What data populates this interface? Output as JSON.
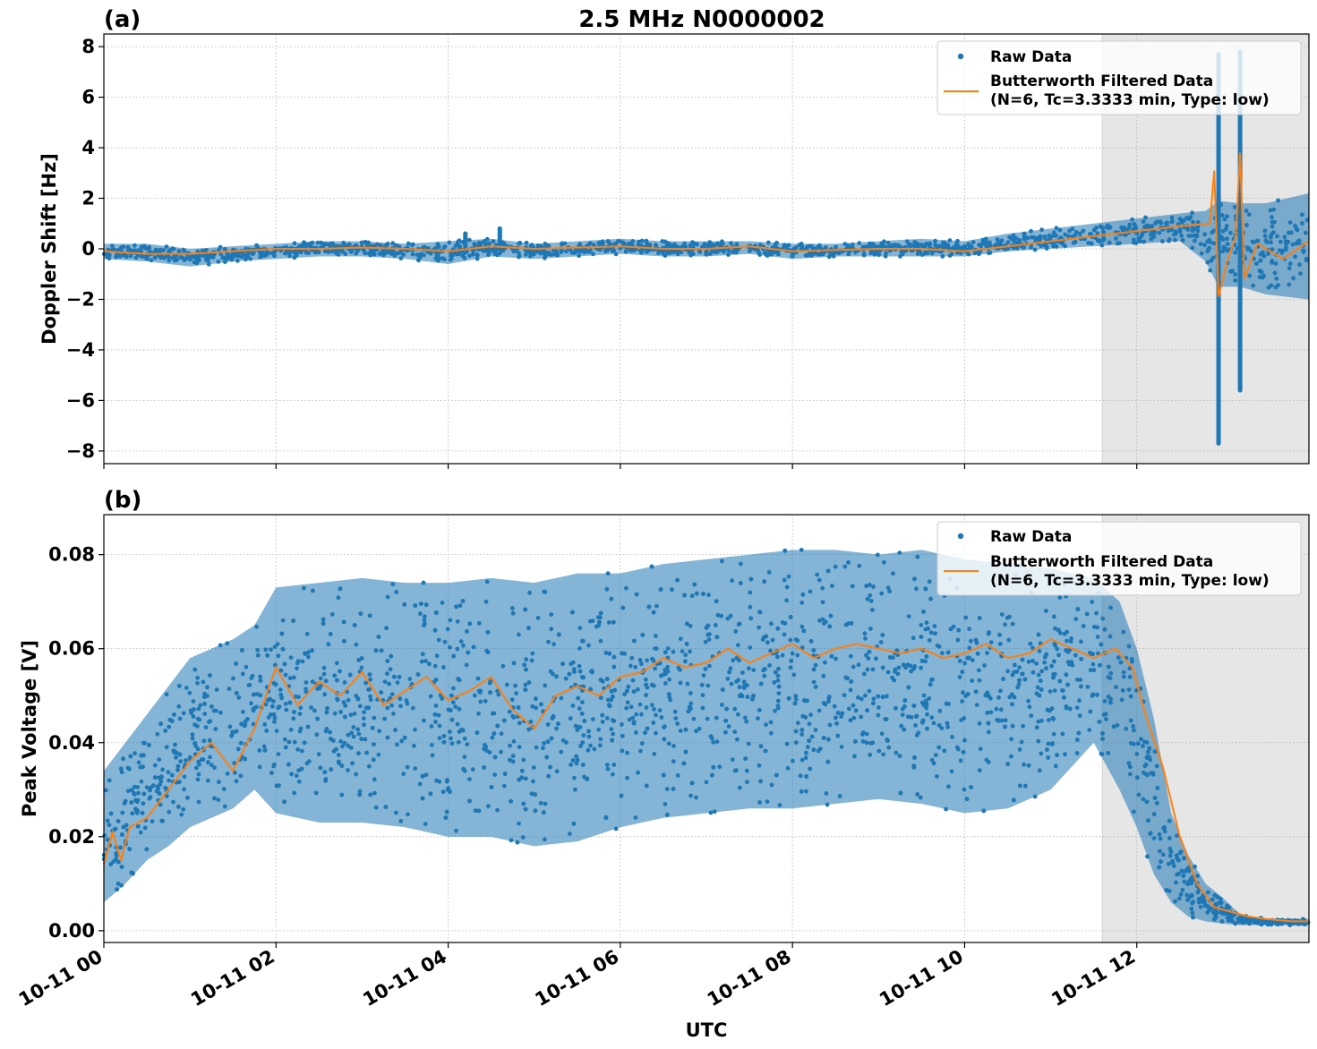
{
  "figure": {
    "title": "2.5 MHz N0000002",
    "xlabel": "UTC",
    "x_range_hours": [
      0,
      14
    ],
    "x_ticks": [
      {
        "hour": 0,
        "label": "10-11 00"
      },
      {
        "hour": 2,
        "label": "10-11 02"
      },
      {
        "hour": 4,
        "label": "10-11 04"
      },
      {
        "hour": 6,
        "label": "10-11 06"
      },
      {
        "hour": 8,
        "label": "10-11 08"
      },
      {
        "hour": 10,
        "label": "10-11 10"
      },
      {
        "hour": 12,
        "label": "10-11 12"
      }
    ],
    "shaded_region_hours": [
      11.6,
      14
    ],
    "colors": {
      "raw": "#1f77b4",
      "filtered": "#ff7f0e",
      "shade": "#e6e6e6",
      "grid": "#b0b0b0"
    },
    "legend": {
      "placement": "upper-right",
      "raw_label": "Raw Data",
      "filtered_label_line1": "Butterworth Filtered Data",
      "filtered_label_line2": "(N=6, Tc=3.3333 min, Type: low)"
    }
  },
  "chart_data": [
    {
      "type": "scatter",
      "panel_label": "(a)",
      "ylabel": "Doppler Shift [Hz]",
      "ylim": [
        -8.5,
        8.5
      ],
      "y_ticks": [
        {
          "value": 8,
          "label": "8"
        },
        {
          "value": 6,
          "label": "6"
        },
        {
          "value": 4,
          "label": "4"
        },
        {
          "value": 2,
          "label": "2"
        },
        {
          "value": 0,
          "label": "0"
        },
        {
          "value": -2,
          "label": "−2"
        },
        {
          "value": -4,
          "label": "−4"
        },
        {
          "value": -6,
          "label": "−6"
        },
        {
          "value": -8,
          "label": "−8"
        }
      ],
      "grid": true,
      "series": [
        {
          "name": "Raw Data",
          "kind": "band",
          "x": [
            0,
            0.5,
            1,
            1.5,
            2,
            2.5,
            3,
            3.5,
            4,
            4.5,
            5,
            5.5,
            6,
            6.5,
            7,
            7.5,
            8,
            8.5,
            9,
            9.5,
            10,
            10.5,
            11,
            11.5,
            12,
            12.5,
            12.8,
            12.95,
            13.2,
            13.5,
            14
          ],
          "low": [
            -0.4,
            -0.5,
            -0.7,
            -0.5,
            -0.4,
            -0.3,
            -0.3,
            -0.4,
            -0.6,
            -0.3,
            -0.4,
            -0.3,
            -0.2,
            -0.3,
            -0.3,
            -0.2,
            -0.4,
            -0.3,
            -0.3,
            -0.3,
            -0.3,
            -0.1,
            0.0,
            0.1,
            0.2,
            0.3,
            -0.5,
            -1.5,
            -1.5,
            -1.8,
            -2.0
          ],
          "high": [
            0.2,
            0.2,
            0.0,
            0.1,
            0.2,
            0.3,
            0.3,
            0.2,
            0.3,
            0.4,
            0.2,
            0.3,
            0.4,
            0.3,
            0.3,
            0.3,
            0.2,
            0.2,
            0.3,
            0.4,
            0.3,
            0.6,
            0.8,
            1.0,
            1.2,
            1.4,
            1.5,
            1.9,
            1.8,
            1.8,
            2.2
          ],
          "spikes": [
            {
              "x": 4.2,
              "y": 0.6
            },
            {
              "x": 4.6,
              "y": 0.8
            },
            {
              "x": 12.95,
              "y": 7.7
            },
            {
              "x": 12.95,
              "y": -7.7
            },
            {
              "x": 13.2,
              "y": 7.8
            },
            {
              "x": 13.2,
              "y": -5.6
            }
          ]
        },
        {
          "name": "Butterworth Filtered Data",
          "kind": "line",
          "x": [
            0,
            0.5,
            1,
            1.5,
            2,
            2.5,
            3,
            3.5,
            4,
            4.5,
            5,
            5.5,
            6,
            6.5,
            7,
            7.5,
            8,
            8.5,
            9,
            9.5,
            10,
            10.5,
            11,
            11.5,
            12,
            12.5,
            12.85,
            12.9,
            12.95,
            13.05,
            13.15,
            13.2,
            13.25,
            13.4,
            13.7,
            14
          ],
          "y": [
            -0.1,
            -0.2,
            -0.2,
            -0.1,
            0.0,
            0.0,
            0.05,
            0.0,
            -0.1,
            0.1,
            0.0,
            0.05,
            0.1,
            0.0,
            0.0,
            0.1,
            -0.1,
            -0.05,
            0.0,
            0.0,
            -0.1,
            0.1,
            0.3,
            0.5,
            0.7,
            0.9,
            1.0,
            3.1,
            -1.9,
            -0.5,
            0.5,
            3.8,
            -1.2,
            0.2,
            -0.4,
            0.3
          ]
        }
      ]
    },
    {
      "type": "scatter",
      "panel_label": "(b)",
      "ylabel": "Peak Voltage [V]",
      "ylim": [
        -0.0025,
        0.0885
      ],
      "y_ticks": [
        {
          "value": 0.08,
          "label": "0.08"
        },
        {
          "value": 0.06,
          "label": "0.06"
        },
        {
          "value": 0.04,
          "label": "0.04"
        },
        {
          "value": 0.02,
          "label": "0.02"
        },
        {
          "value": 0.0,
          "label": "0.00"
        }
      ],
      "grid": true,
      "series": [
        {
          "name": "Raw Data",
          "kind": "band",
          "x": [
            0,
            0.25,
            0.5,
            0.75,
            1,
            1.25,
            1.5,
            1.75,
            2,
            2.5,
            3,
            3.5,
            4,
            4.5,
            5,
            5.5,
            6,
            6.5,
            7,
            7.5,
            8,
            8.5,
            9,
            9.5,
            10,
            10.5,
            11,
            11.5,
            11.8,
            12.0,
            12.2,
            12.4,
            12.6,
            12.8,
            13.0,
            13.2,
            13.5,
            14
          ],
          "low": [
            0.006,
            0.01,
            0.015,
            0.018,
            0.022,
            0.024,
            0.026,
            0.03,
            0.025,
            0.023,
            0.023,
            0.022,
            0.02,
            0.02,
            0.018,
            0.019,
            0.022,
            0.024,
            0.025,
            0.026,
            0.026,
            0.027,
            0.028,
            0.027,
            0.025,
            0.026,
            0.03,
            0.04,
            0.03,
            0.022,
            0.012,
            0.006,
            0.003,
            0.002,
            0.0015,
            0.0012,
            0.0012,
            0.0012
          ],
          "high": [
            0.034,
            0.04,
            0.046,
            0.052,
            0.058,
            0.06,
            0.062,
            0.065,
            0.073,
            0.074,
            0.075,
            0.074,
            0.074,
            0.075,
            0.074,
            0.076,
            0.076,
            0.078,
            0.079,
            0.08,
            0.081,
            0.081,
            0.08,
            0.081,
            0.079,
            0.078,
            0.077,
            0.075,
            0.07,
            0.06,
            0.045,
            0.025,
            0.016,
            0.01,
            0.007,
            0.0035,
            0.0025,
            0.0025
          ]
        },
        {
          "name": "Butterworth Filtered Data",
          "kind": "line",
          "x": [
            0,
            0.1,
            0.2,
            0.3,
            0.5,
            0.75,
            1,
            1.25,
            1.5,
            1.75,
            2,
            2.25,
            2.5,
            2.75,
            3,
            3.25,
            3.5,
            3.75,
            4,
            4.25,
            4.5,
            4.75,
            5,
            5.25,
            5.5,
            5.75,
            6,
            6.25,
            6.5,
            6.75,
            7,
            7.25,
            7.5,
            7.75,
            8,
            8.25,
            8.5,
            8.75,
            9,
            9.25,
            9.5,
            9.75,
            10,
            10.25,
            10.5,
            10.75,
            11,
            11.25,
            11.5,
            11.75,
            11.95,
            12.1,
            12.3,
            12.5,
            12.7,
            12.9,
            13.1,
            13.3,
            13.5,
            13.8,
            14
          ],
          "y": [
            0.014,
            0.021,
            0.015,
            0.022,
            0.024,
            0.03,
            0.036,
            0.04,
            0.034,
            0.043,
            0.056,
            0.048,
            0.053,
            0.05,
            0.055,
            0.048,
            0.051,
            0.054,
            0.049,
            0.051,
            0.054,
            0.047,
            0.043,
            0.05,
            0.052,
            0.05,
            0.054,
            0.055,
            0.058,
            0.056,
            0.057,
            0.06,
            0.057,
            0.059,
            0.061,
            0.058,
            0.06,
            0.061,
            0.06,
            0.059,
            0.06,
            0.058,
            0.059,
            0.061,
            0.058,
            0.059,
            0.062,
            0.06,
            0.058,
            0.06,
            0.056,
            0.046,
            0.035,
            0.02,
            0.01,
            0.005,
            0.004,
            0.003,
            0.0025,
            0.002,
            0.002
          ]
        }
      ]
    }
  ]
}
